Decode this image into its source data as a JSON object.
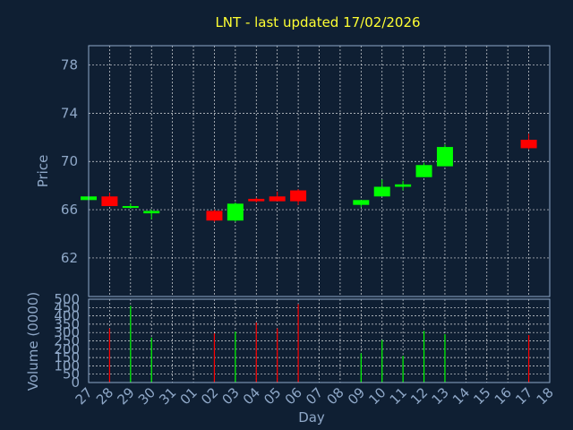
{
  "chart_data": {
    "type": "candlestick",
    "title": "LNT - last updated 17/02/2026",
    "xlabel": "Day",
    "colors": {
      "up": "#00ff00",
      "down": "#ff0000",
      "background": "#0f1f33",
      "axis": "#8fa8c8",
      "title": "#ffff33",
      "grid": "#ffffff"
    },
    "x_ticks": [
      "27",
      "28",
      "29",
      "30",
      "31",
      "01",
      "02",
      "03",
      "04",
      "05",
      "06",
      "07",
      "08",
      "09",
      "10",
      "11",
      "12",
      "13",
      "14",
      "15",
      "16",
      "17",
      "18"
    ],
    "price_panel": {
      "ylabel": "Price",
      "ylim": [
        58.8,
        79.6
      ],
      "y_ticks": [
        62,
        66,
        70,
        74,
        78
      ],
      "candles": [
        {
          "day": "27",
          "open": 66.8,
          "high": 67.2,
          "low": 66.8,
          "close": 67.1
        },
        {
          "day": "28",
          "open": 67.1,
          "high": 67.4,
          "low": 66.3,
          "close": 66.3
        },
        {
          "day": "29",
          "open": 66.2,
          "high": 66.5,
          "low": 66.1,
          "close": 66.3
        },
        {
          "day": "30",
          "open": 65.7,
          "high": 66.0,
          "low": 65.2,
          "close": 65.9
        },
        {
          "day": "02",
          "open": 65.9,
          "high": 66.0,
          "low": 65.0,
          "close": 65.1
        },
        {
          "day": "03",
          "open": 65.1,
          "high": 66.6,
          "low": 65.0,
          "close": 66.5
        },
        {
          "day": "04",
          "open": 66.9,
          "high": 67.0,
          "low": 66.6,
          "close": 66.7
        },
        {
          "day": "05",
          "open": 67.1,
          "high": 67.5,
          "low": 66.7,
          "close": 66.7
        },
        {
          "day": "06",
          "open": 67.6,
          "high": 67.7,
          "low": 66.4,
          "close": 66.7
        },
        {
          "day": "09",
          "open": 66.4,
          "high": 66.8,
          "low": 66.2,
          "close": 66.8
        },
        {
          "day": "10",
          "open": 67.1,
          "high": 68.5,
          "low": 67.1,
          "close": 67.9
        },
        {
          "day": "11",
          "open": 67.9,
          "high": 68.4,
          "low": 67.6,
          "close": 68.1
        },
        {
          "day": "12",
          "open": 68.7,
          "high": 69.9,
          "low": 68.7,
          "close": 69.7
        },
        {
          "day": "13",
          "open": 69.6,
          "high": 71.4,
          "low": 69.6,
          "close": 71.2
        },
        {
          "day": "17",
          "open": 71.8,
          "high": 72.3,
          "low": 71.0,
          "close": 71.1
        }
      ]
    },
    "volume_panel": {
      "ylabel": "Volume (0000)",
      "ylim": [
        0,
        500
      ],
      "y_ticks": [
        0,
        50,
        100,
        150,
        200,
        250,
        300,
        350,
        400,
        450,
        500
      ],
      "bars": [
        {
          "day": "28",
          "value": 325,
          "direction": "down"
        },
        {
          "day": "29",
          "value": 460,
          "direction": "up"
        },
        {
          "day": "30",
          "value": 270,
          "direction": "up"
        },
        {
          "day": "02",
          "value": 295,
          "direction": "down"
        },
        {
          "day": "03",
          "value": 305,
          "direction": "up"
        },
        {
          "day": "04",
          "value": 360,
          "direction": "down"
        },
        {
          "day": "05",
          "value": 325,
          "direction": "down"
        },
        {
          "day": "06",
          "value": 470,
          "direction": "down"
        },
        {
          "day": "09",
          "value": 175,
          "direction": "up"
        },
        {
          "day": "10",
          "value": 255,
          "direction": "up"
        },
        {
          "day": "11",
          "value": 160,
          "direction": "up"
        },
        {
          "day": "12",
          "value": 310,
          "direction": "up"
        },
        {
          "day": "13",
          "value": 290,
          "direction": "up"
        },
        {
          "day": "17",
          "value": 285,
          "direction": "down"
        }
      ]
    }
  }
}
